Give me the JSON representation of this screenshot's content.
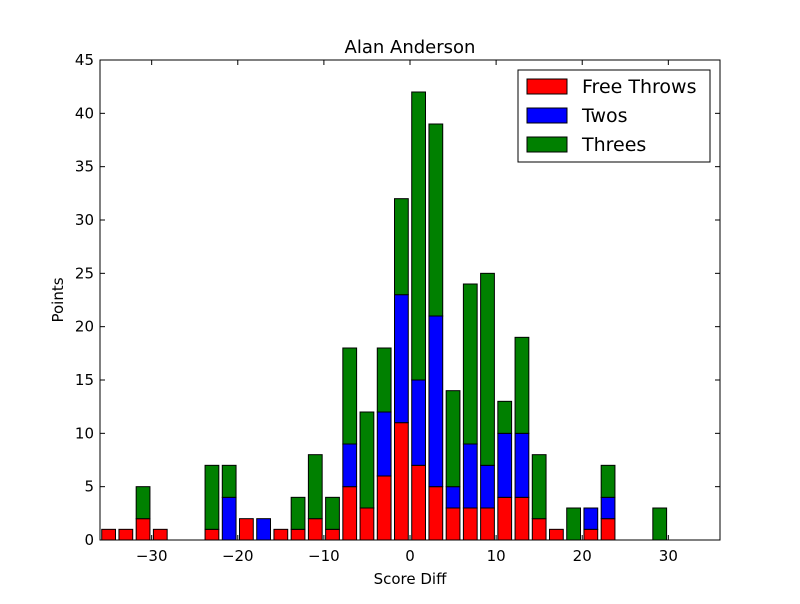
{
  "chart_data": {
    "type": "bar",
    "stacked": true,
    "title": "Alan Anderson",
    "xlabel": "Score Diff",
    "ylabel": "Points",
    "xlim": [
      -36,
      36
    ],
    "ylim": [
      0,
      45
    ],
    "xticks": [
      -30,
      -20,
      -10,
      0,
      10,
      20,
      30
    ],
    "yticks": [
      0,
      5,
      10,
      15,
      20,
      25,
      30,
      35,
      40,
      45
    ],
    "grid": false,
    "legend_position": "upper-right",
    "bin_width": 2,
    "x": [
      -35,
      -33,
      -31,
      -29,
      -27,
      -25,
      -23,
      -21,
      -19,
      -17,
      -15,
      -13,
      -11,
      -9,
      -7,
      -5,
      -3,
      -1,
      1,
      3,
      5,
      7,
      9,
      11,
      13,
      15,
      17,
      19,
      21,
      23,
      25,
      27,
      29,
      31,
      33,
      35
    ],
    "series": [
      {
        "name": "Free Throws",
        "color": "#ff0000",
        "values": [
          1,
          1,
          2,
          1,
          0,
          0,
          1,
          0,
          2,
          0,
          1,
          1,
          2,
          1,
          5,
          3,
          6,
          11,
          7,
          5,
          3,
          3,
          3,
          4,
          4,
          2,
          1,
          0,
          1,
          2,
          0,
          0,
          0,
          0,
          0,
          0
        ]
      },
      {
        "name": "Twos",
        "color": "#0000ff",
        "values": [
          0,
          0,
          0,
          0,
          0,
          0,
          0,
          4,
          0,
          2,
          0,
          0,
          0,
          0,
          4,
          0,
          6,
          12,
          8,
          16,
          2,
          6,
          4,
          6,
          6,
          0,
          0,
          0,
          2,
          2,
          0,
          0,
          0,
          0,
          0,
          0
        ]
      },
      {
        "name": "Threes",
        "color": "#008000",
        "values": [
          0,
          0,
          3,
          0,
          0,
          0,
          6,
          3,
          0,
          0,
          0,
          3,
          6,
          3,
          9,
          9,
          6,
          9,
          27,
          18,
          9,
          15,
          18,
          3,
          9,
          6,
          0,
          3,
          0,
          3,
          0,
          0,
          3,
          0,
          0,
          0
        ]
      }
    ]
  }
}
